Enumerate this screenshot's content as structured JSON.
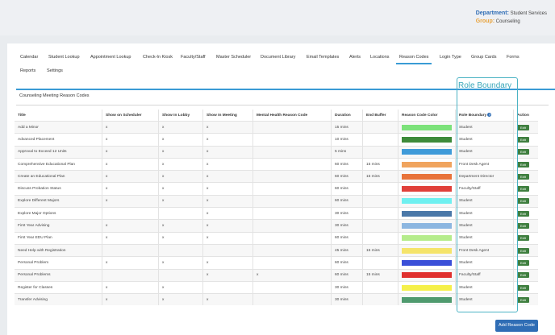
{
  "header": {
    "department_label": "Department:",
    "department_value": "Student Services",
    "group_label": "Group:",
    "group_value": "Counseling"
  },
  "tabs": [
    {
      "label": "Calendar"
    },
    {
      "label": "Student Lookup"
    },
    {
      "label": "Appointment Lookup"
    },
    {
      "label": "Check-In Kiosk"
    },
    {
      "label": "Faculty/Staff"
    },
    {
      "label": "Master Scheduler"
    },
    {
      "label": "Document Library"
    },
    {
      "label": "Email Templates"
    },
    {
      "label": "Alerts"
    },
    {
      "label": "Locations"
    },
    {
      "label": "Reason Codes"
    },
    {
      "label": "Login Type"
    },
    {
      "label": "Group Cards"
    },
    {
      "label": "Forms"
    },
    {
      "label": "Reports"
    },
    {
      "label": "Settings"
    }
  ],
  "active_tab": "Reason Codes",
  "section": {
    "title": "Counseling Meeting Reason Codes"
  },
  "annotation": {
    "label": "Role Boundary",
    "color": "#4bb3c4"
  },
  "table": {
    "columns": [
      "Title",
      "Show on Scheduler",
      "Show In Lobby",
      "Show In Meeting",
      "Mental Health Reason Code",
      "Duration",
      "End Buffer",
      "Reason Code Color",
      "Role Boundary",
      "Action"
    ],
    "help_icon": "question-circle-icon",
    "rows": [
      {
        "title": "Add a Minor",
        "sched": "x",
        "lobby": "x",
        "meeting": "x",
        "mh": "",
        "duration": "15 mins",
        "buffer": "",
        "color": "#7ce27a",
        "role": "Student",
        "action": "Edit"
      },
      {
        "title": "Advanced Placement",
        "sched": "x",
        "lobby": "x",
        "meeting": "x",
        "mh": "",
        "duration": "10 mins",
        "buffer": "",
        "color": "#3d8a3a",
        "role": "Student",
        "action": "Edit"
      },
      {
        "title": "Approval to Exceed 12 Units",
        "sched": "x",
        "lobby": "x",
        "meeting": "x",
        "mh": "",
        "duration": "5 mins",
        "buffer": "",
        "color": "#3f9bd9",
        "role": "Student",
        "action": "Edit"
      },
      {
        "title": "Comprehensive Educational Plan",
        "sched": "x",
        "lobby": "x",
        "meeting": "x",
        "mh": "",
        "duration": "60 mins",
        "buffer": "15 mins",
        "color": "#f0a45e",
        "role": "Front Desk Agent",
        "action": "Edit"
      },
      {
        "title": "Create an Educational Plan",
        "sched": "x",
        "lobby": "x",
        "meeting": "x",
        "mh": "",
        "duration": "60 mins",
        "buffer": "15 mins",
        "color": "#e8733a",
        "role": "Department Director",
        "action": "Edit"
      },
      {
        "title": "Discuss Probation Status",
        "sched": "x",
        "lobby": "x",
        "meeting": "x",
        "mh": "",
        "duration": "60 mins",
        "buffer": "",
        "color": "#e0403a",
        "role": "Faculty/Staff",
        "action": "Edit"
      },
      {
        "title": "Explore Different Majors",
        "sched": "x",
        "lobby": "x",
        "meeting": "x",
        "mh": "",
        "duration": "60 mins",
        "buffer": "",
        "color": "#6ff0f0",
        "role": "Student",
        "action": "Edit"
      },
      {
        "title": "Explore Major Options",
        "sched": "",
        "lobby": "",
        "meeting": "x",
        "mh": "",
        "duration": "30 mins",
        "buffer": "",
        "color": "#4a78a8",
        "role": "Student",
        "action": "Edit"
      },
      {
        "title": "First Year Advising",
        "sched": "x",
        "lobby": "x",
        "meeting": "x",
        "mh": "",
        "duration": "30 mins",
        "buffer": "",
        "color": "#8cb6e0",
        "role": "Student",
        "action": "Edit"
      },
      {
        "title": "First Year EDU Plan",
        "sched": "x",
        "lobby": "x",
        "meeting": "x",
        "mh": "",
        "duration": "60 mins",
        "buffer": "",
        "color": "#b5ec8c",
        "role": "Student",
        "action": "Edit"
      },
      {
        "title": "Need Help with Registration",
        "sched": "",
        "lobby": "",
        "meeting": "",
        "mh": "",
        "duration": "45 mins",
        "buffer": "15 mins",
        "color": "#f5e46a",
        "role": "Front Desk Agent",
        "action": "Edit"
      },
      {
        "title": "Personal Problem",
        "sched": "x",
        "lobby": "x",
        "meeting": "x",
        "mh": "",
        "duration": "60 mins",
        "buffer": "",
        "color": "#3a4fd8",
        "role": "Student",
        "action": "Edit"
      },
      {
        "title": "Personal Problems",
        "sched": "",
        "lobby": "",
        "meeting": "x",
        "mh": "x",
        "duration": "60 mins",
        "buffer": "15 mins",
        "color": "#e0302e",
        "role": "Faculty/Staff",
        "action": "Edit"
      },
      {
        "title": "Register for Classes",
        "sched": "x",
        "lobby": "x",
        "meeting": "",
        "mh": "",
        "duration": "30 mins",
        "buffer": "",
        "color": "#f5f04a",
        "role": "Student",
        "action": "Edit"
      },
      {
        "title": "Transfer Advising",
        "sched": "x",
        "lobby": "x",
        "meeting": "x",
        "mh": "",
        "duration": "30 mins",
        "buffer": "",
        "color": "#4f9a6e",
        "role": "Student",
        "action": "Edit"
      }
    ]
  },
  "footer": {
    "add_button_label": "Add Reason Code"
  }
}
